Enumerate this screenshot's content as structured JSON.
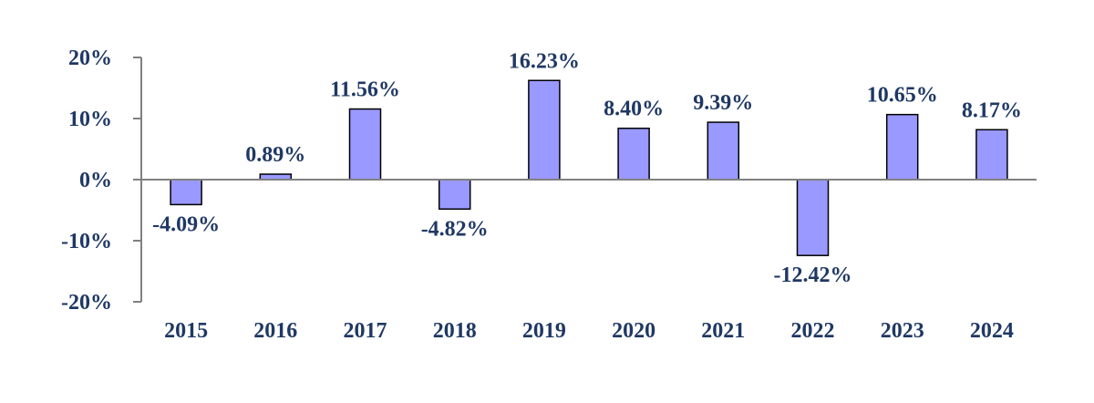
{
  "chart_data": {
    "type": "bar",
    "categories": [
      "2015",
      "2016",
      "2017",
      "2018",
      "2019",
      "2020",
      "2021",
      "2022",
      "2023",
      "2024"
    ],
    "values": [
      -4.09,
      0.89,
      11.56,
      -4.82,
      16.23,
      8.4,
      9.39,
      -12.42,
      10.65,
      8.17
    ],
    "data_labels": [
      "-4.09%",
      "0.89%",
      "11.56%",
      "-4.82%",
      "16.23%",
      "8.40%",
      "9.39%",
      "-12.42%",
      "10.65%",
      "8.17%"
    ],
    "yticks": [
      20,
      10,
      0,
      -10,
      -20
    ],
    "ytick_labels": [
      "20%",
      "10%",
      "0%",
      "-10%",
      "-20%"
    ],
    "ylim": [
      -20,
      20
    ],
    "grid": false,
    "legend": "none",
    "title": "",
    "xlabel": "",
    "ylabel": "",
    "colors": {
      "bar_fill": "#9999ff",
      "bar_stroke": "#000000",
      "text": "#1f3864",
      "axis": "#808080"
    }
  }
}
